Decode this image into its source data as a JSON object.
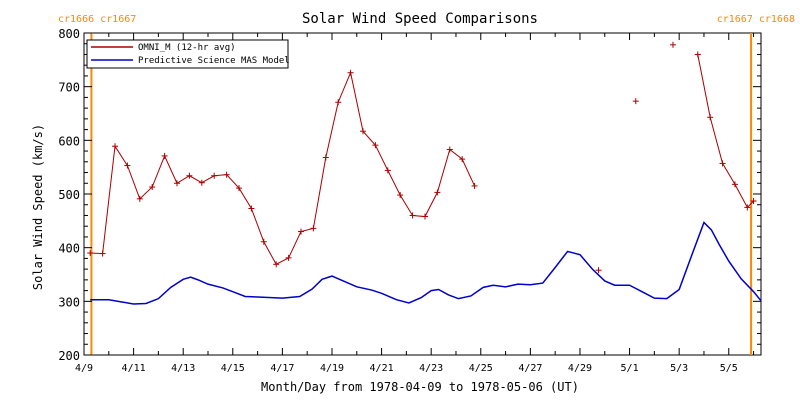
{
  "chart_data": {
    "type": "line",
    "title": "Solar Wind Speed Comparisons",
    "xlabel": "Month/Day from 1978-04-09 to 1978-05-06 (UT)",
    "ylabel": "Solar Wind Speed (km/s)",
    "x_range_days": [
      0,
      27
    ],
    "x_start_date": "1978-04-09",
    "ylim": [
      200,
      800
    ],
    "yticks": [
      200,
      300,
      400,
      500,
      600,
      700,
      800
    ],
    "xticks": [
      {
        "day": 0,
        "label": "4/9"
      },
      {
        "day": 2,
        "label": "4/11"
      },
      {
        "day": 4,
        "label": "4/13"
      },
      {
        "day": 6,
        "label": "4/15"
      },
      {
        "day": 8,
        "label": "4/17"
      },
      {
        "day": 10,
        "label": "4/19"
      },
      {
        "day": 12,
        "label": "4/21"
      },
      {
        "day": 14,
        "label": "4/23"
      },
      {
        "day": 16,
        "label": "4/25"
      },
      {
        "day": 18,
        "label": "4/27"
      },
      {
        "day": 20,
        "label": "4/29"
      },
      {
        "day": 22,
        "label": "5/1"
      },
      {
        "day": 24,
        "label": "5/3"
      },
      {
        "day": 26,
        "label": "5/5"
      }
    ],
    "legend_position": "top-left",
    "series": [
      {
        "name": "OMNI_M (12-hr avg)",
        "color": "#aa0000",
        "marker": "plus",
        "segments": [
          [
            [
              0.25,
              390
            ],
            [
              0.75,
              389
            ],
            [
              1.25,
              589
            ],
            [
              1.75,
              553
            ],
            [
              2.25,
              491
            ],
            [
              2.75,
              513
            ],
            [
              3.25,
              571
            ],
            [
              3.75,
              520
            ],
            [
              4.25,
              534
            ],
            [
              4.75,
              521
            ],
            [
              5.25,
              534
            ],
            [
              5.75,
              536
            ],
            [
              6.25,
              511
            ],
            [
              6.75,
              473
            ],
            [
              7.25,
              411
            ],
            [
              7.75,
              369
            ],
            [
              8.25,
              381
            ],
            [
              8.75,
              430
            ],
            [
              9.25,
              436
            ],
            [
              9.75,
              568
            ],
            [
              10.25,
              671
            ],
            [
              10.75,
              726
            ],
            [
              11.25,
              617
            ],
            [
              11.75,
              591
            ],
            [
              12.25,
              544
            ],
            [
              12.75,
              498
            ],
            [
              13.25,
              460
            ],
            [
              13.75,
              458
            ],
            [
              14.25,
              503
            ],
            [
              14.75,
              583
            ],
            [
              15.25,
              565
            ],
            [
              15.75,
              515
            ]
          ],
          [
            [
              20.75,
              358
            ]
          ],
          [
            [
              22.25,
              673
            ]
          ],
          [
            [
              23.75,
              778
            ]
          ],
          [
            [
              24.75,
              760
            ],
            [
              25.25,
              643
            ],
            [
              25.75,
              557
            ],
            [
              26.25,
              518
            ],
            [
              26.75,
              475
            ],
            [
              27.0,
              487
            ]
          ]
        ]
      },
      {
        "name": "Predictive Science MAS Model",
        "color": "#0000cc",
        "marker": "none",
        "points": [
          [
            0.25,
            303
          ],
          [
            1.0,
            303
          ],
          [
            1.5,
            299
          ],
          [
            2.0,
            295
          ],
          [
            2.5,
            296
          ],
          [
            3.0,
            305
          ],
          [
            3.5,
            326
          ],
          [
            4.0,
            341
          ],
          [
            4.3,
            345
          ],
          [
            4.6,
            340
          ],
          [
            5.0,
            332
          ],
          [
            5.6,
            325
          ],
          [
            6.0,
            318
          ],
          [
            6.5,
            309
          ],
          [
            7.0,
            308
          ],
          [
            8.0,
            306
          ],
          [
            8.7,
            309
          ],
          [
            9.2,
            323
          ],
          [
            9.6,
            341
          ],
          [
            10.0,
            347
          ],
          [
            10.5,
            337
          ],
          [
            11.0,
            327
          ],
          [
            11.6,
            321
          ],
          [
            12.0,
            315
          ],
          [
            12.6,
            303
          ],
          [
            13.1,
            297
          ],
          [
            13.6,
            307
          ],
          [
            14.0,
            320
          ],
          [
            14.3,
            322
          ],
          [
            14.7,
            312
          ],
          [
            15.1,
            305
          ],
          [
            15.6,
            310
          ],
          [
            16.1,
            326
          ],
          [
            16.5,
            330
          ],
          [
            17.0,
            327
          ],
          [
            17.5,
            332
          ],
          [
            18.0,
            331
          ],
          [
            18.5,
            334
          ],
          [
            19.0,
            363
          ],
          [
            19.5,
            393
          ],
          [
            20.0,
            387
          ],
          [
            20.5,
            360
          ],
          [
            21.0,
            338
          ],
          [
            21.4,
            330
          ],
          [
            22.0,
            330
          ],
          [
            22.5,
            318
          ],
          [
            23.0,
            306
          ],
          [
            23.5,
            305
          ],
          [
            24.0,
            322
          ],
          [
            24.5,
            385
          ],
          [
            25.0,
            447
          ],
          [
            25.3,
            433
          ],
          [
            25.6,
            407
          ],
          [
            26.0,
            375
          ],
          [
            26.5,
            342
          ],
          [
            27.0,
            318
          ],
          [
            27.3,
            301
          ]
        ]
      }
    ],
    "carrington_markers": [
      {
        "label": "cr1666 cr1667",
        "position": "top-left",
        "day": 0.3
      },
      {
        "label": "cr1667 cr1668",
        "position": "top-right",
        "day": 26.9
      }
    ],
    "colors": {
      "markers": "#ff8800"
    }
  }
}
